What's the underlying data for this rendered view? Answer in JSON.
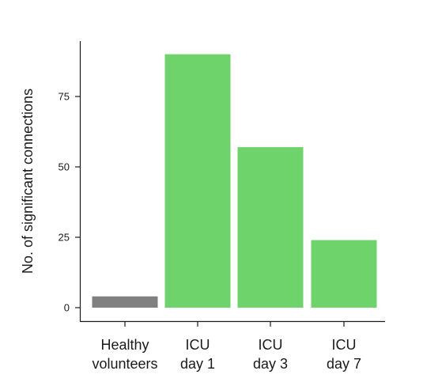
{
  "chart_data": {
    "type": "bar",
    "categories": [
      [
        "Healthy",
        "volunteers"
      ],
      [
        "ICU",
        "day 1"
      ],
      [
        "ICU",
        "day 3"
      ],
      [
        "ICU",
        "day 7"
      ]
    ],
    "values": [
      4,
      90,
      57,
      24
    ],
    "bar_colors": [
      "#808080",
      "#6fd36c",
      "#6fd36c",
      "#6fd36c"
    ],
    "title": "",
    "xlabel": "",
    "ylabel": "No. of significant connections",
    "ylim": [
      0,
      90
    ],
    "yticks": [
      0,
      25,
      50,
      75
    ],
    "grid": false,
    "legend": "none"
  }
}
